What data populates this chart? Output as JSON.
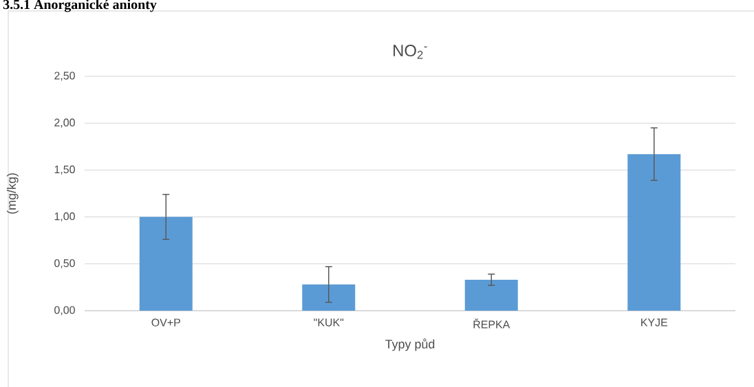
{
  "chart_data": {
    "type": "bar",
    "title": "NO$_{2}$$^{-}$",
    "xlabel": "Typy půd",
    "ylabel": "(mg/kg)",
    "annotations": [
      "3.5.1 Anorganické anionty"
    ],
    "categories": [
      "OV+P",
      "\"KUK\"",
      "ŘEPKA",
      "KYJE"
    ],
    "values": [
      1.0,
      0.28,
      0.33,
      1.67
    ],
    "errors": [
      0.24,
      0.19,
      0.06,
      0.28
    ],
    "color": "#5b9bd5",
    "ylim": [
      0,
      2.5
    ],
    "yticks": [
      {
        "value": 0,
        "label": "0,00"
      },
      {
        "value": 0.5,
        "label": "0,50"
      },
      {
        "value": 1,
        "label": "1,00"
      },
      {
        "value": 1.5,
        "label": "1,50"
      },
      {
        "value": 2,
        "label": "2,00"
      },
      {
        "value": 2.5,
        "label": "2,50"
      }
    ],
    "grid": "y"
  }
}
